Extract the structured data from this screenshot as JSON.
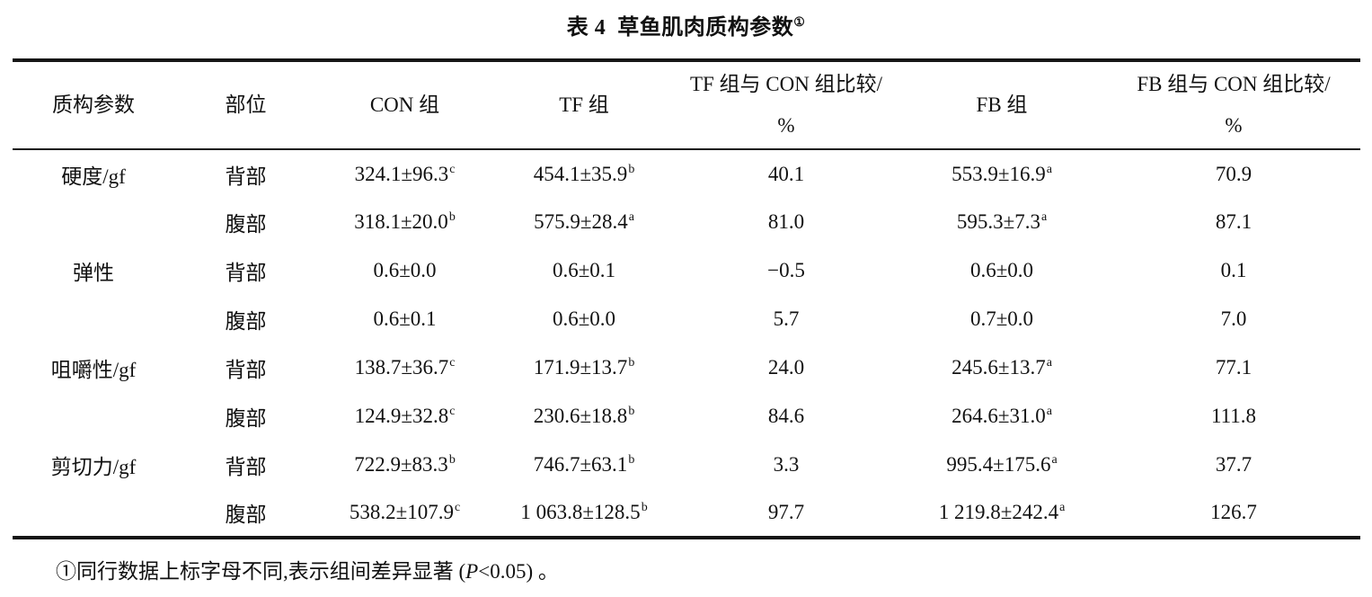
{
  "title": {
    "text": "表 4  草鱼肌肉质构参数",
    "note_mark": "①"
  },
  "table": {
    "headers": [
      "质构参数",
      "部位",
      "CON 组",
      "TF 组",
      "TF 组与 CON 组比较/\n%",
      "FB 组",
      "FB 组与 CON 组比较/\n%"
    ],
    "rows": [
      {
        "param": "硬度/gf",
        "part": "背部",
        "con": {
          "v": "324.1±96.3",
          "sup": "c"
        },
        "tf": {
          "v": "454.1±35.9",
          "sup": "b"
        },
        "tf_vs_con": "40.1",
        "fb": {
          "v": "553.9±16.9",
          "sup": "a"
        },
        "fb_vs_con": "70.9"
      },
      {
        "param": "",
        "part": "腹部",
        "con": {
          "v": "318.1±20.0",
          "sup": "b"
        },
        "tf": {
          "v": "575.9±28.4",
          "sup": "a"
        },
        "tf_vs_con": "81.0",
        "fb": {
          "v": "595.3±7.3",
          "sup": "a"
        },
        "fb_vs_con": "87.1"
      },
      {
        "param": "弹性",
        "part": "背部",
        "con": {
          "v": "0.6±0.0",
          "sup": ""
        },
        "tf": {
          "v": "0.6±0.1",
          "sup": ""
        },
        "tf_vs_con": "−0.5",
        "fb": {
          "v": "0.6±0.0",
          "sup": ""
        },
        "fb_vs_con": "0.1"
      },
      {
        "param": "",
        "part": "腹部",
        "con": {
          "v": "0.6±0.1",
          "sup": ""
        },
        "tf": {
          "v": "0.6±0.0",
          "sup": ""
        },
        "tf_vs_con": "5.7",
        "fb": {
          "v": "0.7±0.0",
          "sup": ""
        },
        "fb_vs_con": "7.0"
      },
      {
        "param": "咀嚼性/gf",
        "part": "背部",
        "con": {
          "v": "138.7±36.7",
          "sup": "c"
        },
        "tf": {
          "v": "171.9±13.7",
          "sup": "b"
        },
        "tf_vs_con": "24.0",
        "fb": {
          "v": "245.6±13.7",
          "sup": "a"
        },
        "fb_vs_con": "77.1"
      },
      {
        "param": "",
        "part": "腹部",
        "con": {
          "v": "124.9±32.8",
          "sup": "c"
        },
        "tf": {
          "v": "230.6±18.8",
          "sup": "b"
        },
        "tf_vs_con": "84.6",
        "fb": {
          "v": "264.6±31.0",
          "sup": "a"
        },
        "fb_vs_con": "111.8"
      },
      {
        "param": "剪切力/gf",
        "part": "背部",
        "con": {
          "v": "722.9±83.3",
          "sup": "b"
        },
        "tf": {
          "v": "746.7±63.1",
          "sup": "b"
        },
        "tf_vs_con": "3.3",
        "fb": {
          "v": "995.4±175.6",
          "sup": "a"
        },
        "fb_vs_con": "37.7"
      },
      {
        "param": "",
        "part": "腹部",
        "con": {
          "v": "538.2±107.9",
          "sup": "c"
        },
        "tf": {
          "v": "1 063.8±128.5",
          "sup": "b"
        },
        "tf_vs_con": "97.7",
        "fb": {
          "v": "1 219.8±242.4",
          "sup": "a"
        },
        "fb_vs_con": "126.7"
      }
    ]
  },
  "footnote": {
    "pre": "①同行数据上标字母不同,表示组间差异显著 (",
    "italic": "P",
    "post": "<0.05) 。"
  }
}
